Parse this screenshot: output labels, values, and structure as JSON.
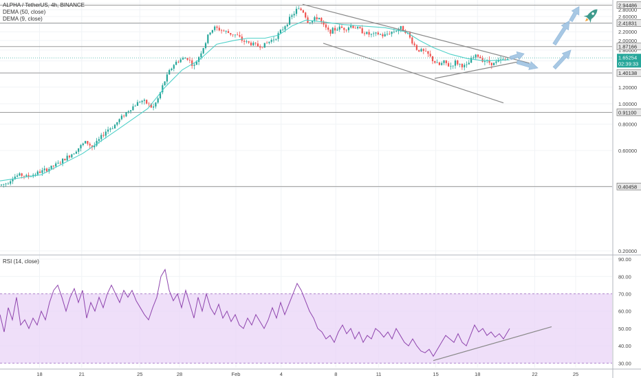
{
  "header": {
    "symbol_line": "ALPHA / TetherUS, 4h, BINANCE",
    "indicator_1": "DEMA (50, close)",
    "indicator_2": "DEMA (9, close)"
  },
  "rsi_panel": {
    "label": "RSI (14, close)"
  },
  "colors": {
    "up": "#26a69a",
    "down": "#ef5350",
    "dema": "#4dd0c8",
    "rsi": "#8e44ad",
    "rsi_band": "#e9d4f7",
    "trendline": "#888888",
    "arrow": "#9fc3e2",
    "price_tag": "#26a69a",
    "level_tag": "#e8e8e8",
    "rocket": "#3e9a8c"
  },
  "chart_data": [
    {
      "type": "candlestick",
      "y_axis_scale": "log",
      "ylim": [
        0.2,
        3.0
      ],
      "ytick_labels": [
        "3 USDT",
        "2.80000",
        "2.60000",
        "2.40000",
        "2.20000",
        "2.00000",
        "1.80000",
        "1.60000",
        "1.40000",
        "1.20000",
        "1.00000",
        "0.80000",
        "0.60000",
        "0.40000",
        "0.20000"
      ],
      "yticks": [
        3.0,
        2.8,
        2.6,
        2.4,
        2.2,
        2.0,
        1.8,
        1.6,
        1.4,
        1.2,
        1.0,
        0.8,
        0.6,
        0.4,
        0.2
      ],
      "xtick_labels": [
        "18",
        "21",
        "25",
        "28",
        "Feb",
        "4",
        "8",
        "11",
        "15",
        "18",
        "22",
        "25"
      ],
      "xticks": [
        57.5,
        118.8,
        203.3,
        261,
        343,
        408.8,
        488.3,
        550.6,
        633.6,
        694.3,
        777.5,
        837
      ],
      "x_domain": [
        0,
        890
      ],
      "horizontal_levels": [
        {
          "label": "2.94486",
          "value": 2.94486
        },
        {
          "label": "2.41831",
          "value": 2.41831
        },
        {
          "label": "1.87166",
          "value": 1.87166
        },
        {
          "label": "1.40138",
          "value": 1.40138
        },
        {
          "label": "0.91100",
          "value": 0.911
        },
        {
          "label": "0.40458",
          "value": 0.40458
        }
      ],
      "current_price": {
        "value": 1.65254,
        "label": "1.65254",
        "countdown": "02:39:33"
      },
      "price_path": [
        [
          0,
          0.41
        ],
        [
          10,
          0.42
        ],
        [
          20,
          0.45
        ],
        [
          30,
          0.46
        ],
        [
          40,
          0.45
        ],
        [
          55,
          0.47
        ],
        [
          70,
          0.49
        ],
        [
          85,
          0.52
        ],
        [
          95,
          0.55
        ],
        [
          105,
          0.58
        ],
        [
          115,
          0.62
        ],
        [
          125,
          0.66
        ],
        [
          135,
          0.62
        ],
        [
          145,
          0.68
        ],
        [
          155,
          0.75
        ],
        [
          165,
          0.78
        ],
        [
          175,
          0.85
        ],
        [
          185,
          0.92
        ],
        [
          195,
          0.98
        ],
        [
          205,
          1.04
        ],
        [
          215,
          1.0
        ],
        [
          222,
          0.95
        ],
        [
          230,
          1.06
        ],
        [
          238,
          1.25
        ],
        [
          246,
          1.42
        ],
        [
          254,
          1.56
        ],
        [
          262,
          1.62
        ],
        [
          272,
          1.66
        ],
        [
          282,
          1.5
        ],
        [
          290,
          1.7
        ],
        [
          298,
          1.92
        ],
        [
          305,
          2.2
        ],
        [
          312,
          2.3
        ],
        [
          320,
          2.25
        ],
        [
          328,
          2.2
        ],
        [
          336,
          2.15
        ],
        [
          344,
          2.12
        ],
        [
          352,
          2.0
        ],
        [
          360,
          1.95
        ],
        [
          368,
          1.92
        ],
        [
          376,
          1.88
        ],
        [
          384,
          1.9
        ],
        [
          392,
          1.98
        ],
        [
          400,
          2.06
        ],
        [
          408,
          2.2
        ],
        [
          416,
          2.4
        ],
        [
          424,
          2.6
        ],
        [
          432,
          2.82
        ],
        [
          440,
          2.78
        ],
        [
          448,
          2.45
        ],
        [
          456,
          2.5
        ],
        [
          463,
          2.6
        ],
        [
          470,
          2.35
        ],
        [
          478,
          2.2
        ],
        [
          486,
          2.25
        ],
        [
          494,
          2.3
        ],
        [
          502,
          2.28
        ],
        [
          510,
          2.35
        ],
        [
          518,
          2.3
        ],
        [
          526,
          2.22
        ],
        [
          534,
          2.15
        ],
        [
          542,
          2.12
        ],
        [
          550,
          2.15
        ],
        [
          558,
          2.1
        ],
        [
          566,
          2.18
        ],
        [
          574,
          2.22
        ],
        [
          582,
          2.3
        ],
        [
          590,
          2.22
        ],
        [
          598,
          2.0
        ],
        [
          606,
          1.82
        ],
        [
          614,
          1.78
        ],
        [
          622,
          1.72
        ],
        [
          630,
          1.6
        ],
        [
          638,
          1.52
        ],
        [
          646,
          1.58
        ],
        [
          654,
          1.5
        ],
        [
          662,
          1.58
        ],
        [
          670,
          1.53
        ],
        [
          678,
          1.5
        ],
        [
          686,
          1.64
        ],
        [
          694,
          1.7
        ],
        [
          702,
          1.62
        ],
        [
          710,
          1.58
        ],
        [
          718,
          1.55
        ],
        [
          726,
          1.6
        ],
        [
          734,
          1.62
        ],
        [
          741,
          1.65
        ]
      ],
      "dema_50_path": [
        [
          0,
          0.43
        ],
        [
          60,
          0.46
        ],
        [
          120,
          0.58
        ],
        [
          170,
          0.75
        ],
        [
          215,
          0.95
        ],
        [
          240,
          1.2
        ],
        [
          265,
          1.45
        ],
        [
          290,
          1.62
        ],
        [
          315,
          1.92
        ],
        [
          340,
          2.0
        ],
        [
          360,
          2.05
        ],
        [
          385,
          2.05
        ],
        [
          405,
          2.12
        ],
        [
          425,
          2.35
        ],
        [
          445,
          2.5
        ],
        [
          470,
          2.45
        ],
        [
          500,
          2.38
        ],
        [
          530,
          2.34
        ],
        [
          560,
          2.3
        ],
        [
          590,
          2.2
        ],
        [
          610,
          2.0
        ],
        [
          630,
          1.85
        ],
        [
          655,
          1.72
        ],
        [
          680,
          1.64
        ],
        [
          705,
          1.6
        ],
        [
          741,
          1.62
        ]
      ],
      "pattern_lines": [
        {
          "name": "falling-wedge-upper",
          "points": [
            [
              440,
              2.97
            ],
            [
              770,
              1.56
            ]
          ]
        },
        {
          "name": "falling-wedge-lower",
          "points": [
            [
              470,
              1.94
            ],
            [
              732,
              1.01
            ]
          ]
        },
        {
          "name": "support-rising",
          "points": [
            [
              632,
              1.32
            ],
            [
              752,
              1.58
            ]
          ]
        }
      ],
      "projection_arrows": [
        {
          "name": "arrow-breakout-small",
          "from": [
            742,
            1.65
          ],
          "to": [
            762,
            1.73
          ]
        },
        {
          "name": "arrow-retest",
          "from": [
            752,
            1.58
          ],
          "to": [
            782,
            1.48
          ]
        },
        {
          "name": "arrow-up-1",
          "from": [
            806,
            1.48
          ],
          "to": [
            830,
            1.8
          ]
        },
        {
          "name": "arrow-up-2",
          "from": [
            806,
            1.92
          ],
          "to": [
            828,
            2.48
          ]
        },
        {
          "name": "arrow-up-3",
          "from": [
            830,
            2.48
          ],
          "to": [
            842,
            2.9
          ]
        }
      ]
    },
    {
      "type": "line",
      "name": "RSI (14, close)",
      "ylim": [
        27,
        92
      ],
      "ytick_labels": [
        "90.00",
        "80.00",
        "70.00",
        "60.00",
        "50.00",
        "40.00",
        "30.00"
      ],
      "yticks": [
        90,
        80,
        70,
        60,
        50,
        40,
        30
      ],
      "band": [
        30,
        70
      ],
      "rsi_path": [
        [
          0,
          58
        ],
        [
          6,
          48
        ],
        [
          12,
          62
        ],
        [
          18,
          55
        ],
        [
          24,
          68
        ],
        [
          30,
          52
        ],
        [
          36,
          55
        ],
        [
          42,
          50
        ],
        [
          48,
          56
        ],
        [
          54,
          52
        ],
        [
          60,
          60
        ],
        [
          66,
          55
        ],
        [
          72,
          65
        ],
        [
          78,
          72
        ],
        [
          84,
          75
        ],
        [
          90,
          68
        ],
        [
          96,
          60
        ],
        [
          102,
          68
        ],
        [
          108,
          73
        ],
        [
          114,
          65
        ],
        [
          120,
          72
        ],
        [
          126,
          56
        ],
        [
          132,
          65
        ],
        [
          138,
          60
        ],
        [
          144,
          68
        ],
        [
          150,
          62
        ],
        [
          156,
          70
        ],
        [
          162,
          75
        ],
        [
          168,
          70
        ],
        [
          174,
          65
        ],
        [
          180,
          72
        ],
        [
          186,
          68
        ],
        [
          192,
          72
        ],
        [
          198,
          66
        ],
        [
          204,
          62
        ],
        [
          210,
          58
        ],
        [
          216,
          55
        ],
        [
          222,
          62
        ],
        [
          228,
          68
        ],
        [
          234,
          80
        ],
        [
          240,
          84
        ],
        [
          246,
          72
        ],
        [
          252,
          66
        ],
        [
          258,
          70
        ],
        [
          264,
          62
        ],
        [
          270,
          72
        ],
        [
          276,
          64
        ],
        [
          282,
          56
        ],
        [
          288,
          68
        ],
        [
          294,
          60
        ],
        [
          300,
          70
        ],
        [
          306,
          62
        ],
        [
          312,
          58
        ],
        [
          318,
          64
        ],
        [
          324,
          56
        ],
        [
          330,
          60
        ],
        [
          336,
          54
        ],
        [
          342,
          58
        ],
        [
          348,
          52
        ],
        [
          354,
          50
        ],
        [
          360,
          56
        ],
        [
          366,
          52
        ],
        [
          372,
          58
        ],
        [
          378,
          54
        ],
        [
          384,
          50
        ],
        [
          390,
          55
        ],
        [
          396,
          62
        ],
        [
          402,
          56
        ],
        [
          408,
          65
        ],
        [
          414,
          58
        ],
        [
          420,
          64
        ],
        [
          426,
          70
        ],
        [
          432,
          76
        ],
        [
          438,
          72
        ],
        [
          444,
          66
        ],
        [
          450,
          60
        ],
        [
          456,
          56
        ],
        [
          462,
          50
        ],
        [
          468,
          48
        ],
        [
          474,
          44
        ],
        [
          480,
          46
        ],
        [
          486,
          42
        ],
        [
          492,
          48
        ],
        [
          498,
          52
        ],
        [
          504,
          47
        ],
        [
          510,
          50
        ],
        [
          516,
          44
        ],
        [
          522,
          48
        ],
        [
          528,
          42
        ],
        [
          534,
          46
        ],
        [
          540,
          44
        ],
        [
          546,
          50
        ],
        [
          552,
          48
        ],
        [
          558,
          45
        ],
        [
          564,
          48
        ],
        [
          570,
          44
        ],
        [
          576,
          50
        ],
        [
          582,
          46
        ],
        [
          588,
          42
        ],
        [
          594,
          40
        ],
        [
          600,
          44
        ],
        [
          606,
          40
        ],
        [
          612,
          37
        ],
        [
          618,
          36
        ],
        [
          624,
          38
        ],
        [
          630,
          34
        ],
        [
          636,
          38
        ],
        [
          642,
          42
        ],
        [
          648,
          46
        ],
        [
          654,
          44
        ],
        [
          660,
          42
        ],
        [
          666,
          47
        ],
        [
          672,
          42
        ],
        [
          678,
          40
        ],
        [
          684,
          46
        ],
        [
          690,
          52
        ],
        [
          696,
          48
        ],
        [
          702,
          50
        ],
        [
          708,
          46
        ],
        [
          714,
          48
        ],
        [
          720,
          45
        ],
        [
          726,
          47
        ],
        [
          732,
          44
        ],
        [
          741,
          50
        ]
      ],
      "trendline": {
        "name": "rsi-rising-trendline",
        "points": [
          [
            630,
            31.5
          ],
          [
            802,
            51
          ]
        ]
      }
    }
  ]
}
